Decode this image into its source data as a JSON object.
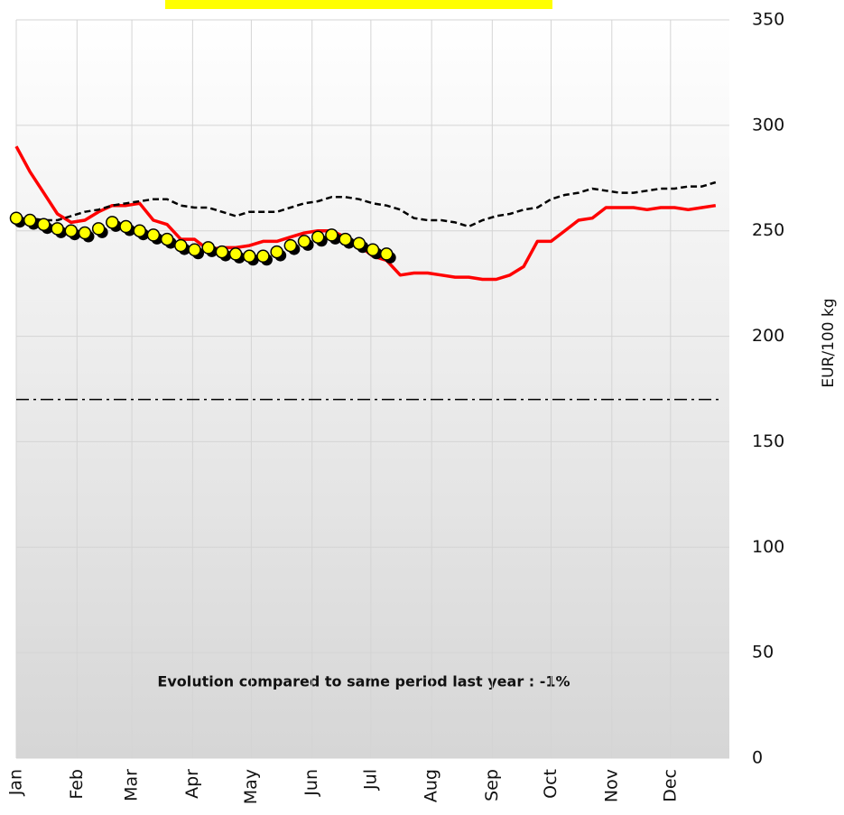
{
  "chart_data": {
    "type": "line",
    "y_label": "EUR/100 kg",
    "annotation": "Evolution compared to same period last year : -1%",
    "x": [
      0,
      1,
      2,
      3,
      4,
      5,
      6,
      7,
      8,
      9,
      10,
      11,
      12,
      13,
      14,
      15,
      16,
      17,
      18,
      19,
      20,
      21,
      22,
      23,
      24,
      25,
      26,
      27,
      28,
      29,
      30,
      31,
      32,
      33,
      34,
      35,
      36,
      37,
      38,
      39,
      40,
      41,
      42,
      43,
      44,
      45,
      46,
      47,
      48,
      49,
      50,
      51
    ],
    "xlim": [
      0,
      52
    ],
    "xticks": [
      {
        "value": 0,
        "label": "Jan"
      },
      {
        "value": 4.43,
        "label": "Feb"
      },
      {
        "value": 8.43,
        "label": "Mar"
      },
      {
        "value": 12.86,
        "label": "Apr"
      },
      {
        "value": 17.14,
        "label": "May"
      },
      {
        "value": 21.57,
        "label": "Jun"
      },
      {
        "value": 25.86,
        "label": "Jul"
      },
      {
        "value": 30.29,
        "label": "Aug"
      },
      {
        "value": 34.71,
        "label": "Sep"
      },
      {
        "value": 39,
        "label": "Oct"
      },
      {
        "value": 43.43,
        "label": "Nov"
      },
      {
        "value": 47.71,
        "label": "Dec"
      }
    ],
    "ylim": [
      0,
      350
    ],
    "yticks": [
      0,
      50,
      100,
      150,
      200,
      250,
      300,
      350
    ],
    "grid": true,
    "reference_value": 170,
    "series": [
      {
        "style": "solid",
        "color": "#ff0000",
        "values": [
          290,
          278,
          268,
          258,
          254,
          255,
          259,
          262,
          262,
          263,
          255,
          253,
          246,
          246,
          241,
          242,
          242,
          243,
          245,
          245,
          247,
          249,
          250,
          250,
          247,
          243,
          238,
          236,
          229,
          230,
          230,
          229,
          228,
          228,
          227,
          227,
          229,
          233,
          245,
          245,
          250,
          255,
          256,
          261,
          261,
          261,
          260,
          261,
          261,
          260,
          261,
          262
        ]
      },
      {
        "style": "dashed",
        "color": "#000000",
        "values": [
          256,
          256,
          255,
          255,
          257,
          259,
          260,
          262,
          263,
          264,
          265,
          265,
          262,
          261,
          261,
          259,
          257,
          259,
          259,
          259,
          261,
          263,
          264,
          266,
          266,
          265,
          263,
          262,
          260,
          256,
          255,
          255,
          254,
          252,
          255,
          257,
          258,
          260,
          261,
          265,
          267,
          268,
          270,
          269,
          268,
          268,
          269,
          270,
          270,
          271,
          271,
          273
        ]
      },
      {
        "style": "markers",
        "color": "#ffff00",
        "values": [
          256,
          255,
          253,
          251,
          250,
          249,
          251,
          254,
          252,
          250,
          248,
          246,
          243,
          241,
          242,
          240,
          239,
          238,
          238,
          240,
          243,
          245,
          247,
          248,
          246,
          244,
          241,
          239,
          null,
          null,
          null,
          null,
          null,
          null,
          null,
          null,
          null,
          null,
          null,
          null,
          null,
          null,
          null,
          null,
          null,
          null,
          null,
          null,
          null,
          null,
          null,
          null
        ]
      }
    ]
  }
}
